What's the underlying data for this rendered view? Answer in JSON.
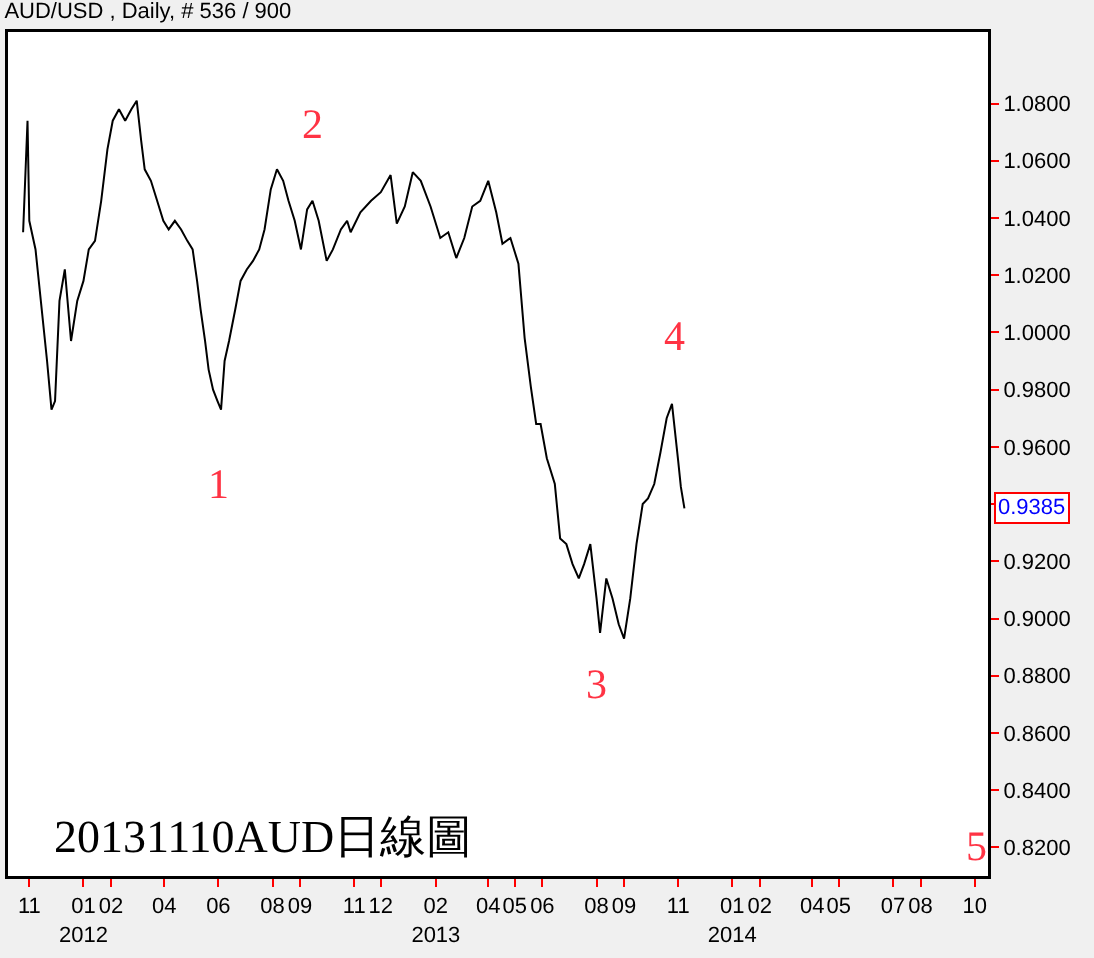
{
  "chart_data": {
    "type": "line",
    "title": "AUD/USD , Daily, # 536 / 900",
    "x": [
      "2011-10-25",
      "2011-10-30",
      "2011-11-01",
      "2011-11-08",
      "2011-11-14",
      "2011-11-21",
      "2011-11-26",
      "2011-11-30",
      "2011-12-05",
      "2011-12-11",
      "2011-12-18",
      "2011-12-25",
      "2012-01-01",
      "2012-01-07",
      "2012-01-14",
      "2012-01-21",
      "2012-01-28",
      "2012-02-03",
      "2012-02-10",
      "2012-02-17",
      "2012-02-24",
      "2012-03-01",
      "2012-03-06",
      "2012-03-10",
      "2012-03-17",
      "2012-03-24",
      "2012-03-31",
      "2012-04-06",
      "2012-04-13",
      "2012-04-20",
      "2012-04-27",
      "2012-05-03",
      "2012-05-08",
      "2012-05-12",
      "2012-05-17",
      "2012-05-21",
      "2012-05-26",
      "2012-05-31",
      "2012-06-04",
      "2012-06-08",
      "2012-06-13",
      "2012-06-20",
      "2012-06-26",
      "2012-07-03",
      "2012-07-10",
      "2012-07-17",
      "2012-07-23",
      "2012-07-30",
      "2012-08-06",
      "2012-08-13",
      "2012-08-19",
      "2012-08-26",
      "2012-09-02",
      "2012-09-09",
      "2012-09-15",
      "2012-09-22",
      "2012-10-01",
      "2012-10-08",
      "2012-10-17",
      "2012-10-24",
      "2012-10-28",
      "2012-11-08",
      "2012-11-20",
      "2012-12-01",
      "2012-12-12",
      "2012-12-19",
      "2012-12-28",
      "2013-01-06",
      "2013-01-15",
      "2013-01-26",
      "2013-02-06",
      "2013-02-15",
      "2013-02-24",
      "2013-03-05",
      "2013-03-14",
      "2013-03-23",
      "2013-04-01",
      "2013-04-10",
      "2013-04-17",
      "2013-04-26",
      "2013-05-05",
      "2013-05-12",
      "2013-05-19",
      "2013-05-25",
      "2013-05-30",
      "2013-06-06",
      "2013-06-15",
      "2013-06-21",
      "2013-06-28",
      "2013-07-05",
      "2013-07-12",
      "2013-07-18",
      "2013-07-25",
      "2013-08-01",
      "2013-08-05",
      "2013-08-12",
      "2013-08-19",
      "2013-08-26",
      "2013-09-01",
      "2013-09-08",
      "2013-09-15",
      "2013-09-22",
      "2013-09-28",
      "2013-10-05",
      "2013-10-12",
      "2013-10-19",
      "2013-10-25",
      "2013-11-01",
      "2013-11-04",
      "2013-11-08"
    ],
    "series": [
      {
        "color": "#000000",
        "values": [
          1.035,
          1.074,
          1.039,
          1.029,
          1.011,
          0.99,
          0.973,
          0.976,
          1.011,
          1.022,
          0.997,
          1.011,
          1.018,
          1.029,
          1.032,
          1.046,
          1.064,
          1.074,
          1.078,
          1.074,
          1.078,
          1.081,
          1.067,
          1.057,
          1.053,
          1.046,
          1.039,
          1.036,
          1.039,
          1.036,
          1.032,
          1.029,
          1.018,
          1.008,
          0.997,
          0.987,
          0.98,
          0.976,
          0.973,
          0.99,
          0.997,
          1.008,
          1.018,
          1.022,
          1.025,
          1.029,
          1.036,
          1.05,
          1.057,
          1.053,
          1.046,
          1.039,
          1.029,
          1.043,
          1.046,
          1.039,
          1.025,
          1.029,
          1.036,
          1.039,
          1.035,
          1.042,
          1.046,
          1.049,
          1.055,
          1.038,
          1.044,
          1.056,
          1.053,
          1.044,
          1.033,
          1.035,
          1.026,
          1.033,
          1.044,
          1.046,
          1.053,
          1.042,
          1.031,
          1.033,
          1.024,
          0.998,
          0.981,
          0.968,
          0.968,
          0.956,
          0.947,
          0.928,
          0.926,
          0.919,
          0.914,
          0.919,
          0.926,
          0.907,
          0.895,
          0.914,
          0.907,
          0.898,
          0.893,
          0.907,
          0.926,
          0.94,
          0.942,
          0.947,
          0.958,
          0.97,
          0.975,
          0.955,
          0.946,
          0.9385
        ]
      }
    ],
    "xlim": [
      "2011-10-08",
      "2014-10-16"
    ],
    "xticks": [
      {
        "value": "2011-11-01",
        "label": "11"
      },
      {
        "value": "2012-01-01",
        "label": "01\n2012"
      },
      {
        "value": "2012-02-01",
        "label": "02"
      },
      {
        "value": "2012-04-01",
        "label": "04"
      },
      {
        "value": "2012-06-01",
        "label": "06"
      },
      {
        "value": "2012-08-01",
        "label": "08"
      },
      {
        "value": "2012-09-01",
        "label": "09"
      },
      {
        "value": "2012-11-01",
        "label": "11"
      },
      {
        "value": "2012-12-01",
        "label": "12"
      },
      {
        "value": "2013-02-01",
        "label": "02\n2013"
      },
      {
        "value": "2013-04-01",
        "label": "04"
      },
      {
        "value": "2013-05-01",
        "label": "05"
      },
      {
        "value": "2013-06-01",
        "label": "06"
      },
      {
        "value": "2013-08-01",
        "label": "08"
      },
      {
        "value": "2013-09-01",
        "label": "09"
      },
      {
        "value": "2013-11-01",
        "label": "11"
      },
      {
        "value": "2014-01-01",
        "label": "01\n2014"
      },
      {
        "value": "2014-02-01",
        "label": "02"
      },
      {
        "value": "2014-04-01",
        "label": "04"
      },
      {
        "value": "2014-05-01",
        "label": "05"
      },
      {
        "value": "2014-07-01",
        "label": "07"
      },
      {
        "value": "2014-08-01",
        "label": "08"
      },
      {
        "value": "2014-10-01",
        "label": "10"
      }
    ],
    "ylim": [
      0.81,
      1.105
    ],
    "yticks": [
      {
        "value": 0.82,
        "label": "0.8200"
      },
      {
        "value": 0.84,
        "label": "0.8400"
      },
      {
        "value": 0.86,
        "label": "0.8600"
      },
      {
        "value": 0.88,
        "label": "0.8800"
      },
      {
        "value": 0.9,
        "label": "0.9000"
      },
      {
        "value": 0.92,
        "label": "0.9200"
      },
      {
        "value": 0.94,
        "label": null
      },
      {
        "value": 0.96,
        "label": "0.9600"
      },
      {
        "value": 0.98,
        "label": "0.9800"
      },
      {
        "value": 1.0,
        "label": "1.0000"
      },
      {
        "value": 1.02,
        "label": "1.0200"
      },
      {
        "value": 1.04,
        "label": "1.0400"
      },
      {
        "value": 1.06,
        "label": "1.0600"
      },
      {
        "value": 1.08,
        "label": "1.0800"
      }
    ],
    "grid": false,
    "line_style": "solid",
    "annotations": [
      "1",
      "2",
      "3",
      "4",
      "5",
      "0.9385",
      "20131110AUD日線圖"
    ]
  }
}
